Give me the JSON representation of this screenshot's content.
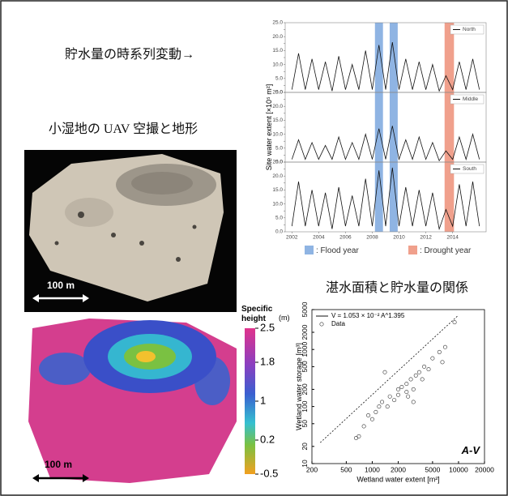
{
  "captions": {
    "timeseries": "貯水量の時系列変動→",
    "uav": "小湿地の UAV 空撮と地形",
    "relation": "湛水面積と貯水量の関係"
  },
  "scale_bars": [
    "100 m",
    "100 m"
  ],
  "colorbar": {
    "title_lines": [
      "Specific",
      "height"
    ],
    "unit": "(m)",
    "lim": [
      -0.5,
      2.5
    ],
    "ticks": [
      2.5,
      1.8,
      1.0,
      0.2,
      -0.5
    ]
  },
  "chart_data": [
    {
      "type": "line",
      "ylabel": "Site water extent [×10⁵ m²]",
      "x": [
        2002,
        2002.5,
        2003,
        2003.5,
        2004,
        2004.5,
        2005,
        2005.5,
        2006,
        2006.5,
        2007,
        2007.5,
        2008,
        2008.5,
        2009,
        2009.5,
        2010,
        2010.5,
        2011,
        2011.5,
        2012,
        2012.5,
        2013,
        2013.5,
        2014,
        2014.5,
        2015,
        2015.5,
        2016
      ],
      "xlim": [
        2001.5,
        2016.5
      ],
      "xticks": [
        2002,
        2004,
        2006,
        2008,
        2010,
        2012,
        2014
      ],
      "ylim": [
        0,
        25
      ],
      "yticks": [
        {
          "value": 0,
          "label": "0.0"
        },
        2.5,
        {
          "value": 5,
          "label": "5.0"
        },
        7.5,
        {
          "value": 10,
          "label": "10.0"
        },
        12.5,
        {
          "value": 15,
          "label": "15.0"
        },
        17.5,
        {
          "value": 20,
          "label": "20.0"
        },
        22.5,
        {
          "value": 25,
          "label": "25.0"
        }
      ],
      "series": [
        {
          "name": "North",
          "color": "#111111",
          "values": [
            1,
            14,
            1,
            12,
            1,
            11,
            0.5,
            13,
            1,
            10,
            1,
            15,
            1,
            17,
            1,
            18,
            1,
            12,
            1,
            11,
            1,
            10,
            0.5,
            6,
            1,
            11,
            1,
            12,
            1
          ]
        },
        {
          "name": "Middle",
          "color": "#111111",
          "values": [
            1,
            8,
            1,
            7,
            1,
            6,
            1,
            9,
            1,
            7,
            1,
            10,
            1,
            12,
            1,
            13,
            1,
            8,
            1,
            9,
            1,
            7,
            0.5,
            4,
            1,
            9,
            1,
            10,
            1
          ]
        },
        {
          "name": "South",
          "color": "#111111",
          "values": [
            2,
            18,
            2,
            15,
            2,
            14,
            1,
            16,
            2,
            13,
            2,
            19,
            2,
            22,
            2,
            23,
            2,
            16,
            2,
            15,
            2,
            14,
            1,
            8,
            2,
            17,
            2,
            18,
            2
          ]
        }
      ],
      "bands": [
        {
          "name": ": Flood year",
          "color": "#8fb4e3",
          "spans": [
            [
              2008.2,
              2008.8
            ],
            [
              2009.3,
              2009.9
            ]
          ]
        },
        {
          "name": ": Drought year",
          "color": "#f0a08c",
          "spans": [
            [
              2013.4,
              2014.1
            ]
          ]
        }
      ]
    },
    {
      "type": "scatter",
      "log": true,
      "xlabel": "Wetland water extent [m²]",
      "ylabel": "Wetland water storage [m³]",
      "annotation": "A-V",
      "xlim": [
        200,
        20000
      ],
      "xticks": [
        200,
        500,
        1000,
        2000,
        5000,
        10000,
        20000
      ],
      "ylim": [
        10,
        5000
      ],
      "yticks": [
        10,
        20,
        50,
        100,
        200,
        500,
        1000,
        2000,
        5000
      ],
      "fit": {
        "name": "V = 1.053 × 10⁻² A^1.395",
        "color": "#111111",
        "x": [
          250,
          10000
        ],
        "values": [
          23.3,
          4000
        ]
      },
      "series": [
        {
          "name": "Data",
          "color": "#333333",
          "x": [
            650,
            700,
            800,
            900,
            1000,
            1100,
            1200,
            1300,
            1400,
            1500,
            1600,
            1800,
            2000,
            2000,
            2200,
            2500,
            2500,
            2600,
            2800,
            3000,
            3000,
            3200,
            3500,
            3800,
            4000,
            4500,
            5000,
            6000,
            6500,
            7000,
            9000
          ],
          "values": [
            28,
            30,
            45,
            70,
            60,
            80,
            100,
            120,
            400,
            100,
            150,
            130,
            200,
            160,
            220,
            180,
            250,
            150,
            300,
            200,
            120,
            350,
            400,
            300,
            500,
            450,
            700,
            900,
            600,
            1100,
            3000
          ]
        }
      ]
    }
  ]
}
